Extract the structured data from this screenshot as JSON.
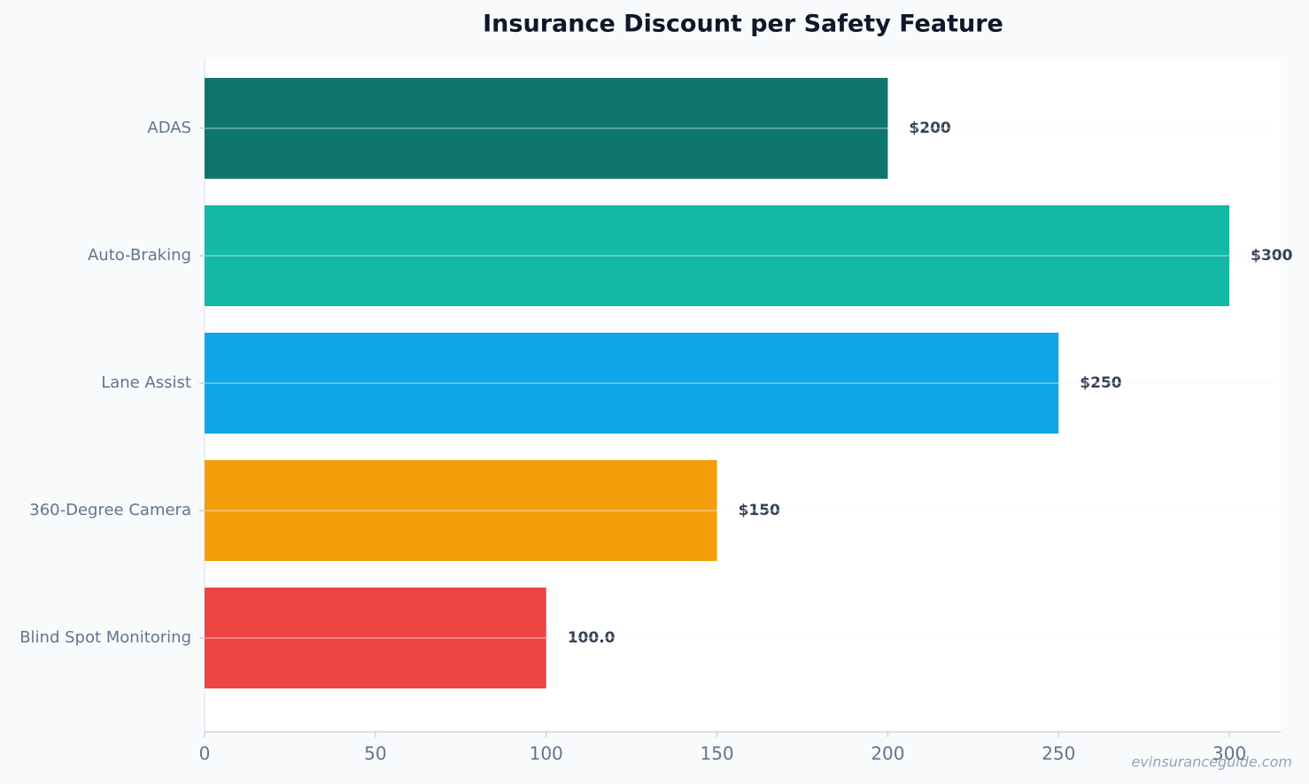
{
  "chart_data": {
    "type": "barh",
    "title": "Insurance Discount per Safety Feature",
    "categories": [
      "ADAS",
      "Auto-Braking",
      "Lane Assist",
      "360-Degree Camera",
      "Blind Spot Monitoring"
    ],
    "values": [
      200,
      300,
      250,
      150,
      100
    ],
    "value_labels": [
      "$200",
      "$300",
      "$250",
      "$150",
      "100.0"
    ],
    "colors": [
      "#0f766e",
      "#14b8a6",
      "#0ea5e9",
      "#f59e0b",
      "#ef4444"
    ],
    "xlim": [
      0,
      315
    ],
    "xticks": [
      0,
      50,
      100,
      150,
      200,
      250,
      300
    ],
    "grid": true,
    "watermark": "evinsuranceguide.com"
  }
}
